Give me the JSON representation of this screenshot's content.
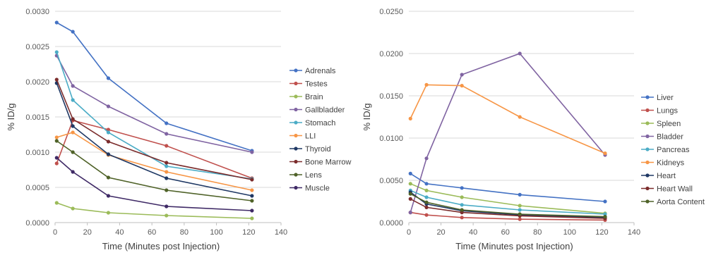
{
  "chart_data": [
    {
      "type": "line",
      "xlabel": "Time (Minutes post Injection)",
      "ylabel": "% ID/g",
      "xlim": [
        0,
        140
      ],
      "ylim": [
        0,
        0.003
      ],
      "x_ticks": [
        "0",
        "20",
        "40",
        "60",
        "80",
        "100",
        "120",
        "140"
      ],
      "y_ticks": [
        "0.0000",
        "0.0005",
        "0.0010",
        "0.0015",
        "0.0020",
        "0.0025",
        "0.0030"
      ],
      "grid": "horizontal",
      "legend_position": "right",
      "x": [
        1,
        11,
        33,
        69,
        122
      ],
      "series": [
        {
          "name": "Adrenals",
          "color": "#4472c4",
          "values": [
            0.00284,
            0.00271,
            0.00205,
            0.00141,
            0.00102
          ]
        },
        {
          "name": "Testes",
          "color": "#c0504d",
          "values": [
            0.00084,
            0.00145,
            0.00132,
            0.00109,
            0.00063
          ]
        },
        {
          "name": "Brain",
          "color": "#9bbb59",
          "values": [
            0.00028,
            0.0002,
            0.00014,
            0.0001,
            6e-05
          ]
        },
        {
          "name": "Gallbladder",
          "color": "#8064a2",
          "values": [
            0.00237,
            0.00194,
            0.00165,
            0.00126,
            0.001
          ]
        },
        {
          "name": "Stomach",
          "color": "#4bacc6",
          "values": [
            0.00242,
            0.00174,
            0.00128,
            0.0008,
            0.00062
          ]
        },
        {
          "name": "LLI",
          "color": "#f79646",
          "values": [
            0.00121,
            0.00128,
            0.00096,
            0.00072,
            0.00046
          ]
        },
        {
          "name": "Thyroid",
          "color": "#1f3864",
          "values": [
            0.00198,
            0.00137,
            0.00097,
            0.00063,
            0.00038
          ]
        },
        {
          "name": "Bone Marrow",
          "color": "#7b2c2c",
          "values": [
            0.00203,
            0.00147,
            0.00115,
            0.00085,
            0.00061
          ]
        },
        {
          "name": "Lens",
          "color": "#4f6228",
          "values": [
            0.00116,
            0.001,
            0.00064,
            0.00046,
            0.00031
          ]
        },
        {
          "name": "Muscle",
          "color": "#3f2a66",
          "values": [
            0.00092,
            0.00072,
            0.00038,
            0.00023,
            0.00017
          ]
        }
      ]
    },
    {
      "type": "line",
      "xlabel": "Time (Minutes post Injection)",
      "ylabel": "% ID/g",
      "xlim": [
        0,
        140
      ],
      "ylim": [
        0,
        0.025
      ],
      "x_ticks": [
        "0",
        "20",
        "40",
        "60",
        "80",
        "100",
        "120",
        "140"
      ],
      "y_ticks": [
        "0.0000",
        "0.0050",
        "0.0100",
        "0.0150",
        "0.0200",
        "0.0250"
      ],
      "grid": "horizontal",
      "legend_position": "right",
      "x": [
        1,
        11,
        33,
        69,
        122
      ],
      "series": [
        {
          "name": "Liver",
          "color": "#4472c4",
          "values": [
            0.0058,
            0.0046,
            0.0041,
            0.0033,
            0.0025
          ]
        },
        {
          "name": "Lungs",
          "color": "#c0504d",
          "values": [
            0.0012,
            0.0009,
            0.0006,
            0.0004,
            0.0003
          ]
        },
        {
          "name": "Spleen",
          "color": "#9bbb59",
          "values": [
            0.0046,
            0.0038,
            0.003,
            0.002,
            0.0011
          ]
        },
        {
          "name": "Bladder",
          "color": "#8064a2",
          "values": [
            0.0012,
            0.0076,
            0.0175,
            0.02,
            0.008
          ]
        },
        {
          "name": "Pancreas",
          "color": "#4bacc6",
          "values": [
            0.0038,
            0.003,
            0.0021,
            0.0015,
            0.001
          ]
        },
        {
          "name": "Kidneys",
          "color": "#f79646",
          "values": [
            0.0123,
            0.0163,
            0.0162,
            0.0125,
            0.0082
          ]
        },
        {
          "name": "Heart",
          "color": "#1f3864",
          "values": [
            0.0036,
            0.0022,
            0.0014,
            0.0009,
            0.0006
          ]
        },
        {
          "name": "Heart Wall",
          "color": "#7b2c2c",
          "values": [
            0.0028,
            0.0018,
            0.0012,
            0.0008,
            0.0005
          ]
        },
        {
          "name": "Aorta Content",
          "color": "#4f6228",
          "values": [
            0.0034,
            0.0024,
            0.0015,
            0.001,
            0.0007
          ]
        }
      ]
    }
  ]
}
